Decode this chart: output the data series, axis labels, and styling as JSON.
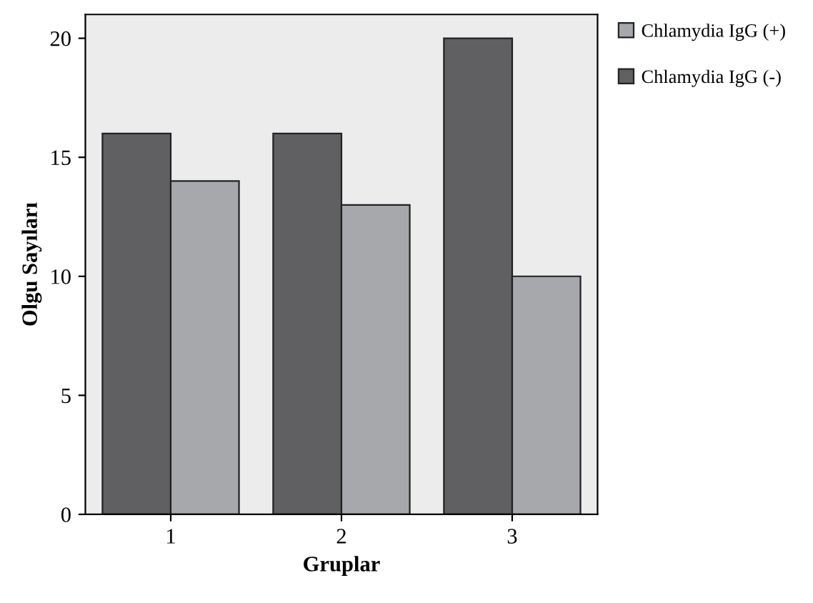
{
  "chart_data": {
    "type": "bar",
    "xlabel": "Gruplar",
    "ylabel": "Olgu Sayıları",
    "categories": [
      "1",
      "2",
      "3"
    ],
    "series": [
      {
        "name": "Chlamydia IgG (-)",
        "color": "#606062",
        "values": [
          16,
          16,
          20
        ]
      },
      {
        "name": "Chlamydia IgG (+)",
        "color": "#a7a8ab",
        "values": [
          14,
          13,
          10
        ]
      }
    ],
    "ylim": [
      0,
      21
    ],
    "yticks": [
      0,
      5,
      10,
      15,
      20
    ],
    "grid": false,
    "legend": "top right"
  }
}
